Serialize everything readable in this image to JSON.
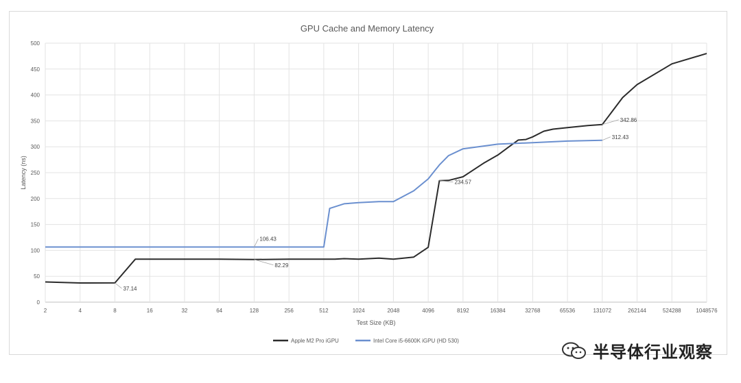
{
  "chart_data": {
    "type": "line",
    "title": "GPU Cache and Memory Latency",
    "xlabel": "Test Size (KB)",
    "ylabel": "Latency (ns)",
    "x_scale": "log2",
    "x_ticks": [
      "2",
      "4",
      "8",
      "16",
      "32",
      "64",
      "128",
      "256",
      "512",
      "1024",
      "2048",
      "4096",
      "8192",
      "16384",
      "32768",
      "65536",
      "131072",
      "262144",
      "524288",
      "1048576"
    ],
    "ylim": [
      0,
      500
    ],
    "y_ticks": [
      "0",
      "50",
      "100",
      "150",
      "200",
      "250",
      "300",
      "350",
      "400",
      "450",
      "500"
    ],
    "grid": true,
    "legend_position": "bottom",
    "series": [
      {
        "name": "Apple M2 Pro iGPU",
        "color": "#2b2b2b",
        "x": [
          2,
          4,
          8,
          12,
          16,
          32,
          64,
          128,
          256,
          512,
          640,
          768,
          1024,
          1536,
          2048,
          3072,
          4096,
          5120,
          6144,
          8192,
          12288,
          16384,
          20480,
          24576,
          28672,
          32768,
          40960,
          49152,
          65536,
          98304,
          131072,
          196608,
          262144,
          524288,
          1048576
        ],
        "y": [
          39,
          37,
          37.14,
          83,
          83,
          83,
          83,
          82.29,
          83,
          83,
          83,
          84,
          83,
          85,
          83,
          87,
          106,
          234.57,
          235,
          242,
          268,
          284,
          300,
          313,
          314,
          319,
          330,
          334,
          337,
          341,
          342.86,
          395,
          420,
          460,
          480
        ]
      },
      {
        "name": "Intel Core i5-6600K iGPU (HD 530)",
        "color": "#6a8fcf",
        "x": [
          2,
          4,
          8,
          16,
          32,
          64,
          128,
          256,
          512,
          576,
          768,
          1024,
          1536,
          2048,
          3072,
          4096,
          5120,
          6144,
          8192,
          16384,
          32768,
          65536,
          131072
        ],
        "y": [
          106.43,
          106.43,
          106.43,
          106.43,
          106.43,
          106.43,
          106.43,
          106.43,
          106.43,
          181,
          190,
          192,
          194,
          194,
          215,
          238,
          265,
          283,
          296,
          305,
          308,
          311,
          312.43
        ]
      }
    ],
    "annotations": [
      {
        "text": "37.14",
        "series": 0,
        "x": 8,
        "y": 37.14
      },
      {
        "text": "82.29",
        "series": 0,
        "x": 128,
        "y": 82.29
      },
      {
        "text": "234.57",
        "series": 0,
        "x": 5120,
        "y": 234.57
      },
      {
        "text": "342.86",
        "series": 0,
        "x": 131072,
        "y": 342.86
      },
      {
        "text": "106.43",
        "series": 1,
        "x": 128,
        "y": 106.43
      },
      {
        "text": "312.43",
        "series": 1,
        "x": 131072,
        "y": 312.43
      }
    ]
  },
  "watermark": {
    "text": "半导体行业观察",
    "icon": "wechat-icon"
  }
}
